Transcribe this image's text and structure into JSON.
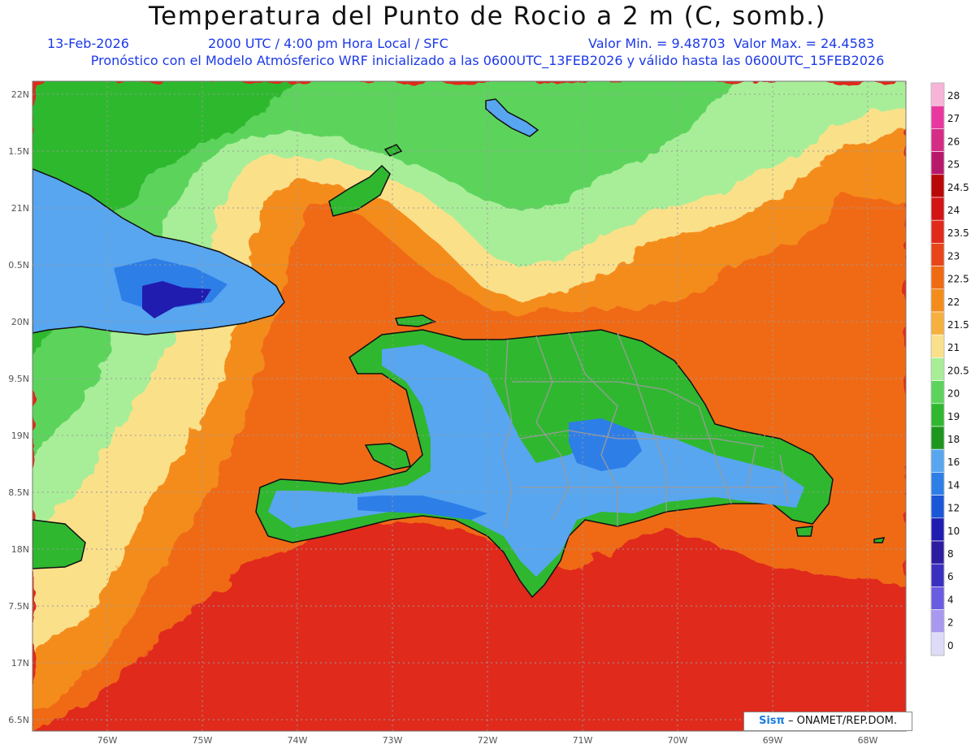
{
  "title": "Temperatura del Punto de Rocio a 2 m (C, somb.)",
  "header": {
    "date": "13-Feb-2026",
    "time": "2000 UTC / 4:00 pm Hora Local / SFC",
    "range": "Valor Min. = 9.48703  Valor Max. = 24.4583",
    "model": "Pronóstico con el Modelo Atmósferico WRF inicializado a las 0600UTC_13FEB2026 y válido hasta las  0600UTC_15FEB2026"
  },
  "axes": {
    "lat_labels": [
      "22N",
      "1.5N",
      "21N",
      "0.5N",
      "20N",
      "9.5N",
      "19N",
      "8.5N",
      "18N",
      "7.5N",
      "17N",
      "6.5N"
    ],
    "lon_labels": [
      "76W",
      "75W",
      "74W",
      "73W",
      "72W",
      "71W",
      "70W",
      "69W",
      "68W"
    ]
  },
  "colorbar": {
    "labels": [
      "28",
      "27",
      "26",
      "25",
      "24.5",
      "24",
      "23.5",
      "23",
      "22.5",
      "22",
      "21.5",
      "21",
      "20.5",
      "20",
      "19",
      "18",
      "16",
      "14",
      "12",
      "10",
      "8",
      "6",
      "4",
      "2",
      "0"
    ],
    "colors": [
      "#f7b4d8",
      "#e8389f",
      "#d52d86",
      "#b8186a",
      "#b80808",
      "#d21414",
      "#e02a1c",
      "#e84618",
      "#f06a14",
      "#f48c1c",
      "#f6b040",
      "#fbe08a",
      "#a8ee98",
      "#5cd45c",
      "#2fb82f",
      "#1c961c",
      "#58a6f0",
      "#2e7ee8",
      "#1a56d8",
      "#201cb0",
      "#2c1ca0",
      "#3a30c0",
      "#6a5ce0",
      "#a898f0",
      "#dcdcf8"
    ]
  },
  "credit": {
    "logo": "Sisπ",
    "text": "– ONAMET/REP.DOM."
  }
}
